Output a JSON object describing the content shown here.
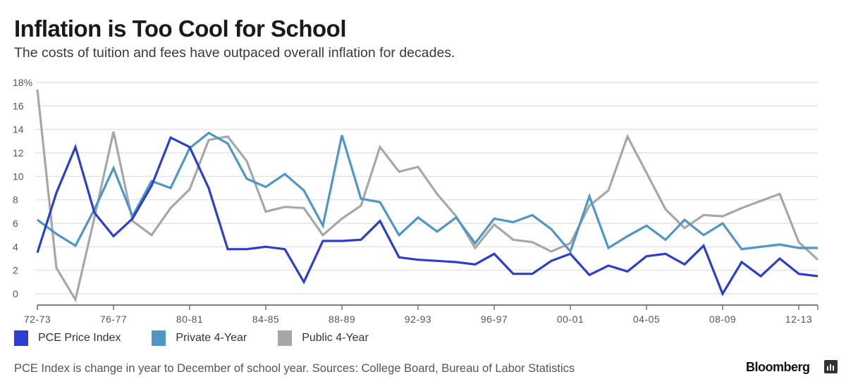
{
  "header": {
    "title": "Inflation is Too Cool for School",
    "subtitle": "The costs of tuition and fees have outpaced overall inflation for decades."
  },
  "footer": {
    "note": "PCE Index is change in year to December of school year. Sources: College Board, Bureau of Labor Statistics",
    "brand": "Bloomberg",
    "brand_icon": "bar-chart-icon"
  },
  "chart_data": {
    "type": "line",
    "title": "Inflation is Too Cool for School",
    "subtitle": "The costs of tuition and fees have outpaced overall inflation for decades.",
    "xlabel": "",
    "ylabel": "",
    "y_unit": "%",
    "ylim": [
      -1,
      18
    ],
    "yticks": [
      0,
      2,
      4,
      6,
      8,
      10,
      12,
      14,
      16,
      18
    ],
    "ytick_labels": [
      "0",
      "2",
      "4",
      "6",
      "8",
      "10",
      "12",
      "14",
      "16",
      "18%"
    ],
    "grid": true,
    "legend_position": "bottom-left",
    "x": [
      "72-73",
      "73-74",
      "74-75",
      "75-76",
      "76-77",
      "77-78",
      "78-79",
      "79-80",
      "80-81",
      "81-82",
      "82-83",
      "83-84",
      "84-85",
      "85-86",
      "86-87",
      "87-88",
      "88-89",
      "89-90",
      "90-91",
      "91-92",
      "92-93",
      "93-94",
      "94-95",
      "95-96",
      "96-97",
      "97-98",
      "98-99",
      "99-00",
      "00-01",
      "01-02",
      "02-03",
      "03-04",
      "04-05",
      "05-06",
      "06-07",
      "07-08",
      "08-09",
      "09-10",
      "10-11",
      "11-12",
      "12-13",
      "13-14"
    ],
    "xtick_labels": [
      "72-73",
      "76-77",
      "80-81",
      "84-85",
      "88-89",
      "92-93",
      "96-97",
      "00-01",
      "04-05",
      "08-09",
      "12-13"
    ],
    "series": [
      {
        "name": "PCE Price Index",
        "color": "#2b3fcc",
        "values": [
          3.5,
          8.6,
          12.5,
          6.9,
          4.9,
          6.4,
          9.2,
          13.3,
          12.5,
          9.0,
          3.8,
          3.8,
          4.0,
          3.8,
          1.0,
          4.5,
          4.5,
          4.6,
          6.2,
          3.1,
          2.9,
          2.8,
          2.7,
          2.5,
          3.4,
          1.7,
          1.7,
          2.8,
          3.4,
          1.6,
          2.4,
          1.9,
          3.2,
          3.4,
          2.5,
          4.1,
          0.0,
          2.7,
          1.5,
          3.0,
          1.7,
          1.5
        ]
      },
      {
        "name": "Private 4-Year",
        "color": "#4f96c4",
        "values": [
          6.3,
          5.1,
          4.1,
          7.2,
          10.7,
          6.6,
          9.6,
          9.0,
          12.4,
          13.7,
          12.8,
          9.8,
          9.1,
          10.2,
          8.8,
          5.8,
          13.5,
          8.1,
          7.8,
          5.0,
          6.5,
          5.3,
          6.5,
          4.3,
          6.4,
          6.1,
          6.7,
          5.5,
          3.6,
          8.3,
          3.9,
          4.9,
          5.8,
          4.6,
          6.3,
          5.0,
          6.0,
          3.8,
          4.0,
          4.2,
          3.9,
          3.9
        ]
      },
      {
        "name": "Public 4-Year",
        "color": "#a7a7a9",
        "values": [
          17.4,
          2.2,
          -0.5,
          6.5,
          13.8,
          6.2,
          5.0,
          7.3,
          8.9,
          13.1,
          13.4,
          11.3,
          7.0,
          7.4,
          7.3,
          5.0,
          6.4,
          7.5,
          12.5,
          10.4,
          10.8,
          8.5,
          6.6,
          3.9,
          5.9,
          4.6,
          4.4,
          3.6,
          4.3,
          7.5,
          8.8,
          13.4,
          10.3,
          7.2,
          5.6,
          6.7,
          6.6,
          7.3,
          7.9,
          8.5,
          4.4,
          2.9
        ]
      }
    ]
  }
}
